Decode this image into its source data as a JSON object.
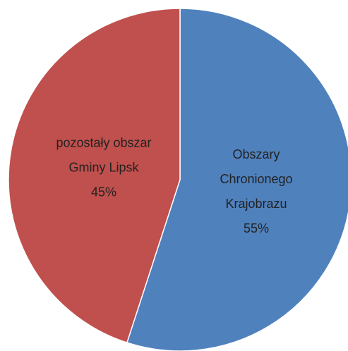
{
  "chart_data": {
    "type": "pie",
    "categories": [
      "Obszary Chronionego Krajobrazu",
      "pozostały obszar Gminy Lipsk"
    ],
    "values": [
      55,
      45
    ],
    "value_labels": [
      "55%",
      "45%"
    ],
    "colors": [
      "#4f81bd",
      "#c0504d"
    ]
  }
}
